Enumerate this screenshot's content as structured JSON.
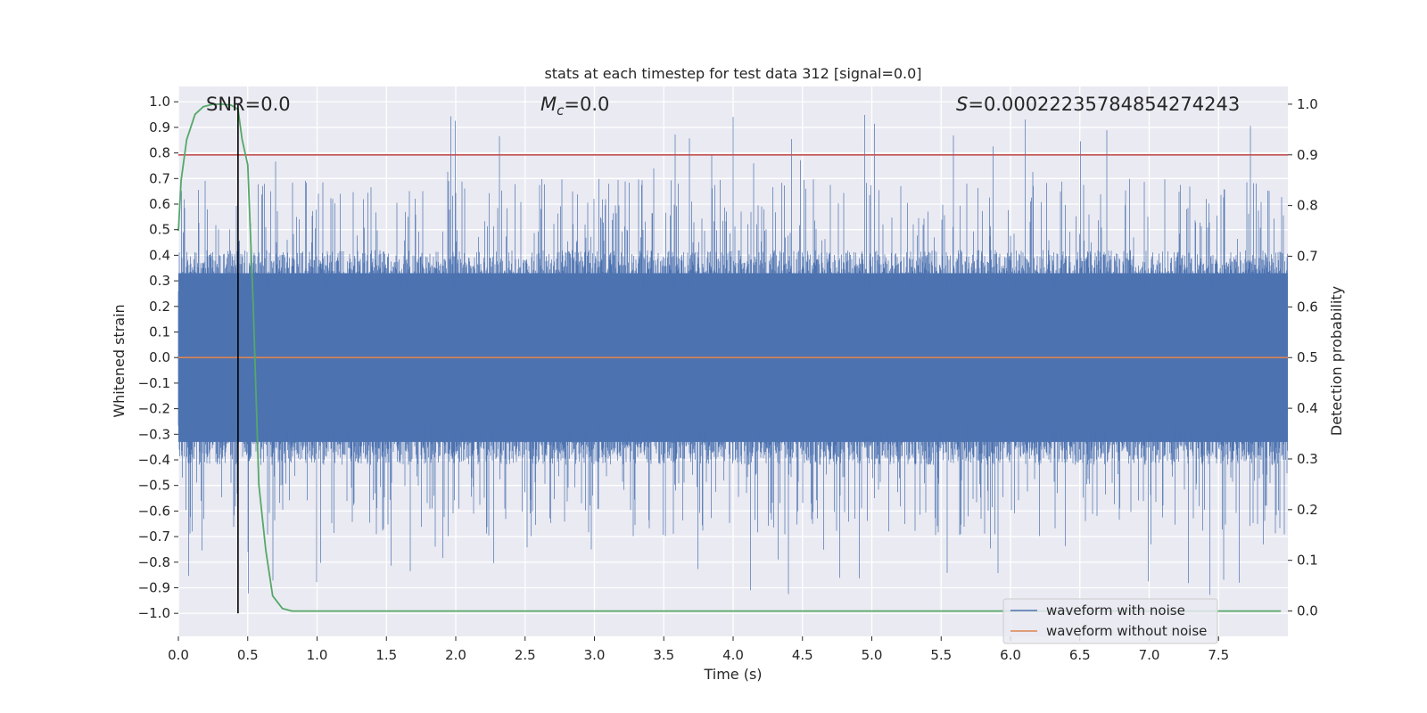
{
  "chart_data": {
    "type": "line",
    "title": "stats at each timestep for test data 312 [signal=0.0]",
    "xlabel": "Time (s)",
    "ylabel_left": "Whitened strain",
    "ylabel_right": "Detection probability",
    "xlim": [
      0.0,
      8.0
    ],
    "ylim_left": [
      -1.09,
      1.06
    ],
    "ylim_right": [
      -0.05,
      1.035
    ],
    "x_ticks": [
      "0.0",
      "0.5",
      "1.0",
      "1.5",
      "2.0",
      "2.5",
      "3.0",
      "3.5",
      "4.0",
      "4.5",
      "5.0",
      "5.5",
      "6.0",
      "6.5",
      "7.0",
      "7.5"
    ],
    "x_tick_values": [
      0.0,
      0.5,
      1.0,
      1.5,
      2.0,
      2.5,
      3.0,
      3.5,
      4.0,
      4.5,
      5.0,
      5.5,
      6.0,
      6.5,
      7.0,
      7.5
    ],
    "y_left_ticks": [
      "1.0",
      "0.9",
      "0.8",
      "0.7",
      "0.6",
      "0.5",
      "0.4",
      "0.3",
      "0.2",
      "0.1",
      "0.0",
      "−0.1",
      "−0.2",
      "−0.3",
      "−0.4",
      "−0.5",
      "−0.6",
      "−0.7",
      "−0.8",
      "−0.9",
      "−1.0"
    ],
    "y_left_tick_values": [
      1.0,
      0.9,
      0.8,
      0.7,
      0.6,
      0.5,
      0.4,
      0.3,
      0.2,
      0.1,
      0.0,
      -0.1,
      -0.2,
      -0.3,
      -0.4,
      -0.5,
      -0.6,
      -0.7,
      -0.8,
      -0.9,
      -1.0
    ],
    "y_right_ticks": [
      "1.0",
      "0.9",
      "0.8",
      "0.7",
      "0.6",
      "0.5",
      "0.4",
      "0.3",
      "0.2",
      "0.1",
      "0.0"
    ],
    "y_right_tick_values": [
      1.0,
      0.9,
      0.8,
      0.7,
      0.6,
      0.5,
      0.4,
      0.3,
      0.2,
      0.1,
      0.0
    ],
    "annotations": {
      "snr": "SNR=0.0",
      "mc_symbol": "M",
      "mc_sub": "c",
      "mc_value": "=0.0",
      "s_symbol": "S",
      "s_value": "=0.00022235784854274243"
    },
    "series": [
      {
        "name": "waveform with noise",
        "color": "#4c72b0",
        "description": "dense noisy strain, mostly within ±0.4 with spikes up to ±0.95"
      },
      {
        "name": "waveform without noise",
        "color": "#dd8452",
        "value": 0.0
      }
    ],
    "detection_probability": {
      "color": "#55a868",
      "x": [
        0.0,
        0.02,
        0.06,
        0.12,
        0.18,
        0.25,
        0.32,
        0.38,
        0.43,
        0.46,
        0.5,
        0.54,
        0.58,
        0.63,
        0.68,
        0.75,
        0.82,
        0.9,
        1.0,
        2.0,
        3.0,
        4.0,
        5.0,
        6.0,
        7.0,
        7.95
      ],
      "y": [
        0.75,
        0.85,
        0.93,
        0.98,
        0.995,
        1.0,
        1.0,
        0.998,
        0.99,
        0.93,
        0.88,
        0.6,
        0.25,
        0.12,
        0.03,
        0.005,
        0.0,
        0.0,
        0.0,
        0.0,
        0.0,
        0.0,
        0.0,
        0.0,
        0.0,
        0.0
      ]
    },
    "threshold": {
      "value": 0.9,
      "axis": "right",
      "color": "#c44e52"
    },
    "marker_time": {
      "value": 0.43,
      "color": "#000000"
    },
    "legend": {
      "position": "lower-right",
      "entries": [
        "waveform with noise",
        "waveform without noise"
      ]
    },
    "grid": true,
    "background": "#eaeaf2"
  }
}
